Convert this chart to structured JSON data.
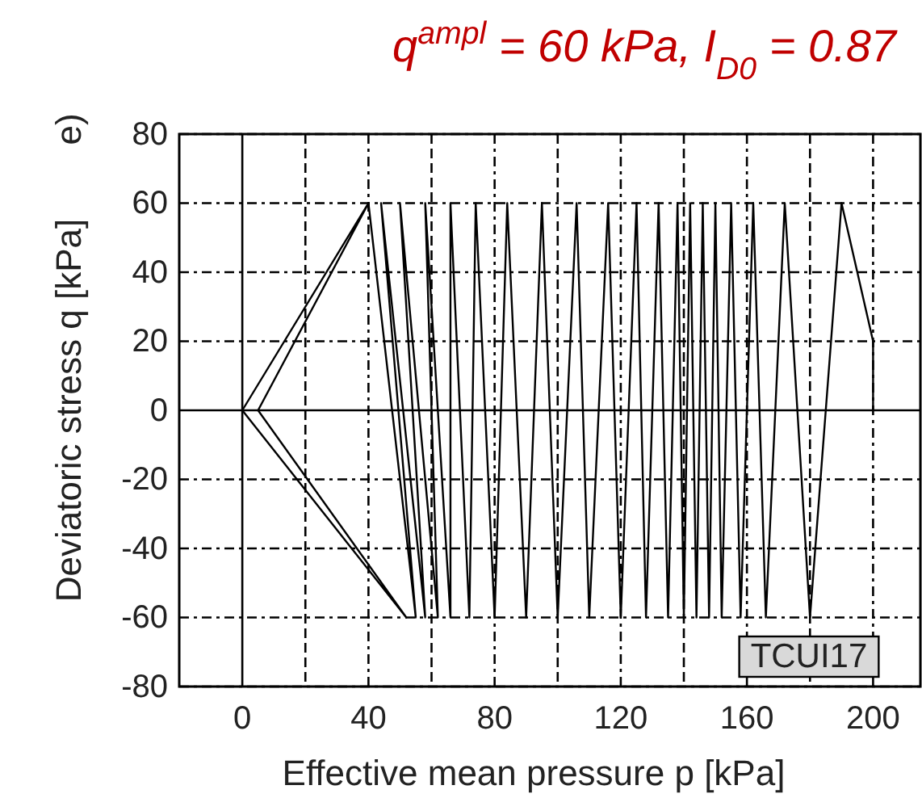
{
  "chart_data": {
    "type": "line",
    "title": "q$^{ampl}$ = 60 kPa, I$_{D0}$ = 0.87",
    "xlabel": "Effective mean pressure p [kPa]",
    "ylabel": "Deviatoric stress q [kPa]",
    "annotations": [
      "e)",
      "TCUI17"
    ],
    "x": [
      200,
      200,
      190,
      180,
      172,
      166,
      162,
      158,
      155,
      152,
      150,
      148,
      146,
      144,
      142,
      140,
      138,
      135,
      132,
      128,
      125,
      120,
      116,
      110,
      106,
      100,
      95,
      90,
      84,
      80,
      74,
      72,
      66,
      66,
      58,
      62,
      50,
      58,
      44,
      55,
      40,
      5,
      52,
      0,
      40,
      0,
      52,
      0
    ],
    "series": [
      {
        "color": "#000000",
        "values": [
          0,
          20,
          60,
          -60,
          60,
          -60,
          60,
          -60,
          60,
          -60,
          60,
          -60,
          60,
          -60,
          60,
          -60,
          60,
          -60,
          60,
          -60,
          60,
          -60,
          60,
          -60,
          60,
          -60,
          60,
          -60,
          60,
          -60,
          60,
          -60,
          60,
          -60,
          60,
          -60,
          60,
          -60,
          60,
          -60,
          60,
          0,
          -60,
          0,
          60,
          0,
          -60,
          0
        ]
      }
    ],
    "xlim": [
      -20,
      215
    ],
    "xticks": [
      0,
      {
        "value": 20,
        "label": null
      },
      40,
      {
        "value": 60,
        "label": null
      },
      80,
      {
        "value": 100,
        "label": null
      },
      120,
      {
        "value": 140,
        "label": null
      },
      160,
      {
        "value": 180,
        "label": null
      },
      200
    ],
    "ylim": [
      -80,
      80
    ],
    "yticks": [
      -80,
      -60,
      -40,
      -20,
      0,
      20,
      40,
      60,
      80
    ],
    "grid": true,
    "marker": "none",
    "line_style": "solid"
  }
}
